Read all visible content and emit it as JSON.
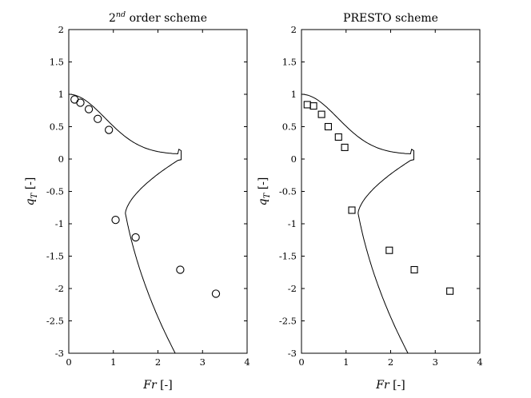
{
  "chart_data": [
    {
      "type": "scatter",
      "title": "2nd order scheme",
      "title_base": "2",
      "title_sup": "nd",
      "title_rest": " order scheme",
      "xlabel": "Fr [-]",
      "xlabel_var": "Fr",
      "xlabel_unit": " [-]",
      "ylabel": "q_T [-]",
      "ylabel_var": "q",
      "ylabel_sub": "T",
      "ylabel_unit": " [-]",
      "xlim": [
        0,
        4
      ],
      "ylim": [
        -3,
        2
      ],
      "xticks": [
        "0",
        "1",
        "2",
        "3",
        "4"
      ],
      "yticks": [
        "2",
        "1.5",
        "1",
        "0.5",
        "0",
        "-0.5",
        "-1",
        "-1.5",
        "-2",
        "-2.5",
        "-3"
      ],
      "grid": false,
      "marker": "circle",
      "points": [
        {
          "x": 0.13,
          "y": 0.92
        },
        {
          "x": 0.26,
          "y": 0.87
        },
        {
          "x": 0.45,
          "y": 0.77
        },
        {
          "x": 0.65,
          "y": 0.62
        },
        {
          "x": 0.9,
          "y": 0.45
        },
        {
          "x": 1.05,
          "y": -0.94
        },
        {
          "x": 1.5,
          "y": -1.21
        },
        {
          "x": 2.5,
          "y": -1.71
        },
        {
          "x": 3.3,
          "y": -2.08
        }
      ]
    },
    {
      "type": "scatter",
      "title": "PRESTO scheme",
      "title_base": "PRESTO scheme",
      "title_sup": "",
      "title_rest": "",
      "xlabel": "Fr [-]",
      "xlabel_var": "Fr",
      "xlabel_unit": " [-]",
      "ylabel": "q_T [-]",
      "ylabel_var": "q",
      "ylabel_sub": "T",
      "ylabel_unit": " [-]",
      "xlim": [
        0,
        4
      ],
      "ylim": [
        -3,
        2
      ],
      "xticks": [
        "0",
        "1",
        "2",
        "3",
        "4"
      ],
      "yticks": [
        "2",
        "1.5",
        "1",
        "0.5",
        "0",
        "-0.5",
        "-1",
        "-1.5",
        "-2",
        "-2.5",
        "-3"
      ],
      "grid": false,
      "marker": "square",
      "points": [
        {
          "x": 0.13,
          "y": 0.84
        },
        {
          "x": 0.27,
          "y": 0.82
        },
        {
          "x": 0.45,
          "y": 0.69
        },
        {
          "x": 0.6,
          "y": 0.5
        },
        {
          "x": 0.83,
          "y": 0.34
        },
        {
          "x": 0.97,
          "y": 0.18
        },
        {
          "x": 1.13,
          "y": -0.79
        },
        {
          "x": 1.97,
          "y": -1.41
        },
        {
          "x": 2.53,
          "y": -1.71
        },
        {
          "x": 3.33,
          "y": -2.04
        }
      ]
    }
  ]
}
